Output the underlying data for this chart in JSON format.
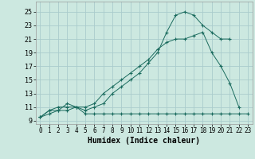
{
  "xlabel": "Humidex (Indice chaleur)",
  "background_color": "#cce8e0",
  "grid_color": "#aacccc",
  "line_color": "#1a6b5e",
  "xlim": [
    -0.5,
    23.5
  ],
  "ylim": [
    8.5,
    26.5
  ],
  "xticks": [
    0,
    1,
    2,
    3,
    4,
    5,
    6,
    7,
    8,
    9,
    10,
    11,
    12,
    13,
    14,
    15,
    16,
    17,
    18,
    19,
    20,
    21,
    22,
    23
  ],
  "yticks": [
    9,
    11,
    13,
    15,
    17,
    19,
    21,
    23,
    25
  ],
  "curve1_x": [
    0,
    1,
    2,
    3,
    4,
    5,
    6,
    7,
    8,
    9,
    10,
    11,
    12,
    13,
    14,
    15,
    16,
    17,
    18,
    19,
    20,
    21,
    22,
    23
  ],
  "curve1_y": [
    9.5,
    10.5,
    10.5,
    10.5,
    11.0,
    10.0,
    10.0,
    10.0,
    10.0,
    10.0,
    10.0,
    10.0,
    10.0,
    10.0,
    10.0,
    10.0,
    10.0,
    10.0,
    10.0,
    10.0,
    10.0,
    10.0,
    10.0,
    10.0
  ],
  "curve2_x": [
    0,
    1,
    2,
    3,
    4,
    5,
    6,
    7,
    8,
    9,
    10,
    11,
    12,
    13,
    14,
    15,
    16,
    17,
    18,
    19,
    20,
    21,
    22
  ],
  "curve2_y": [
    9.5,
    10.0,
    10.5,
    11.5,
    11.0,
    11.0,
    11.5,
    13.0,
    14.0,
    15.0,
    16.0,
    17.0,
    18.0,
    19.5,
    20.5,
    21.0,
    21.0,
    21.5,
    22.0,
    19.0,
    17.0,
    14.5,
    11.0
  ],
  "curve3_x": [
    0,
    1,
    2,
    3,
    4,
    5,
    6,
    7,
    8,
    9,
    10,
    11,
    12,
    13,
    14,
    15,
    16,
    17,
    18,
    19,
    20,
    21
  ],
  "curve3_y": [
    9.5,
    10.5,
    11.0,
    11.0,
    11.0,
    10.5,
    11.0,
    11.5,
    13.0,
    14.0,
    15.0,
    16.0,
    17.5,
    19.0,
    22.0,
    24.5,
    25.0,
    24.5,
    23.0,
    22.0,
    21.0,
    21.0
  ]
}
